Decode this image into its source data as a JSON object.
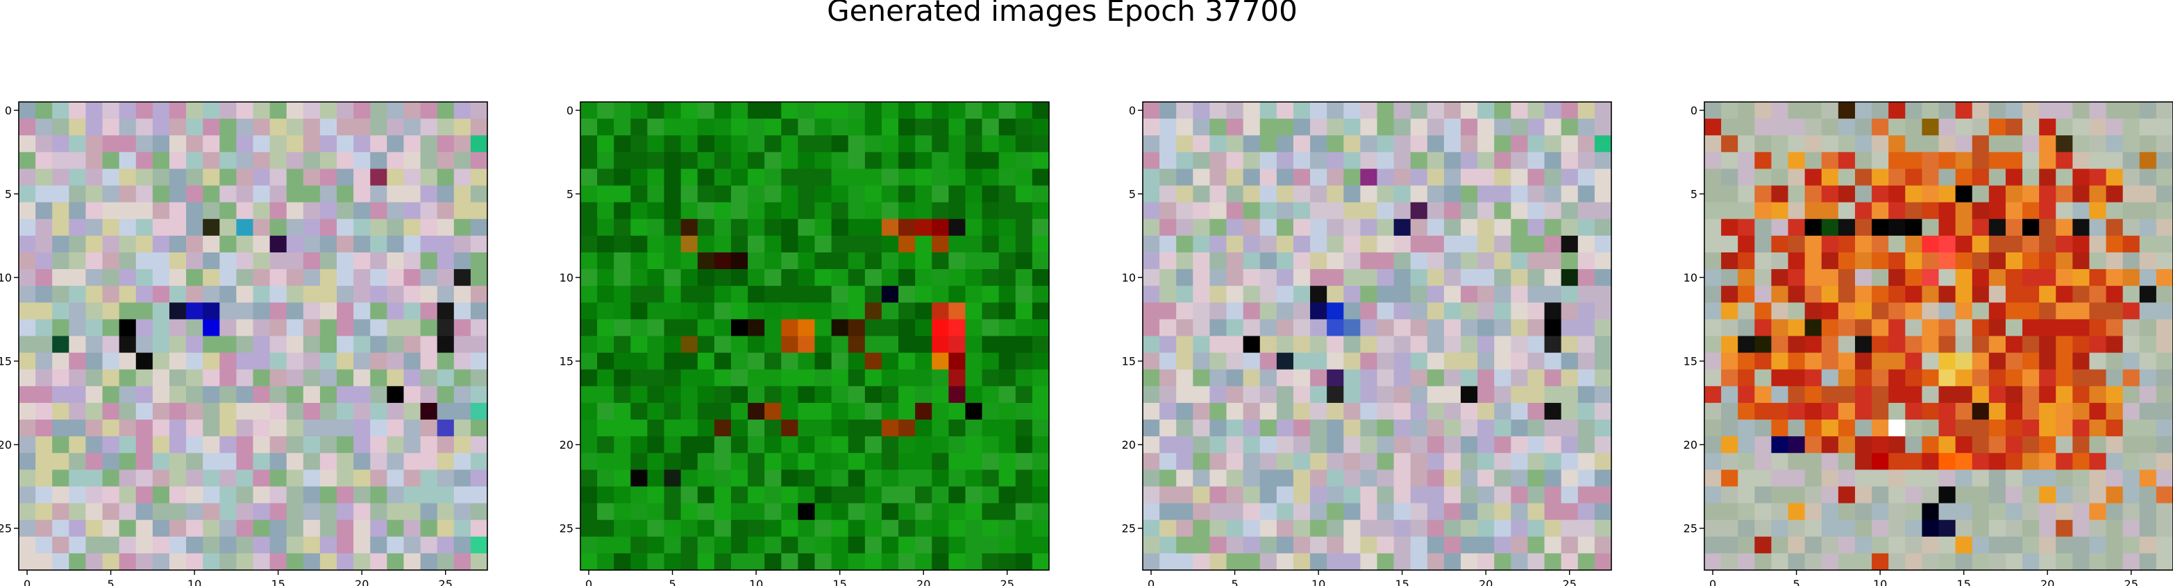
{
  "figure": {
    "title": "Generated images Epoch 37700"
  },
  "chart_data": [
    {
      "type": "heatmap",
      "name": "panel-1",
      "theme": "pastel-noise",
      "grid_size": 28,
      "xlim": [
        -0.5,
        27.5
      ],
      "ylim": [
        27.5,
        -0.5
      ],
      "xticks": [
        "0",
        "5",
        "10",
        "15",
        "20",
        "25"
      ],
      "yticks": [
        "0",
        "5",
        "10",
        "15",
        "20",
        "25"
      ],
      "palette": [
        "#c6b0c8",
        "#b8c9a9",
        "#d6c3d5",
        "#a7b5c4",
        "#c9a8b3",
        "#e1d6cf",
        "#9fb9a4",
        "#b7a9d3",
        "#d3cf9e",
        "#8fa7b7",
        "#c98fb0",
        "#a2c8c4",
        "#e4c8d6",
        "#7fb27a",
        "#c5d2e6"
      ],
      "accents": [
        [
          12,
          10,
          "#1010c0"
        ],
        [
          12,
          11,
          "#0a0a90"
        ],
        [
          13,
          11,
          "#0000e0"
        ],
        [
          12,
          9,
          "#101030"
        ],
        [
          13,
          6,
          "#000000"
        ],
        [
          14,
          6,
          "#111111"
        ],
        [
          15,
          7,
          "#0a0a0a"
        ],
        [
          12,
          25,
          "#151515"
        ],
        [
          13,
          25,
          "#202020"
        ],
        [
          14,
          25,
          "#101010"
        ],
        [
          10,
          26,
          "#1a1a1a"
        ],
        [
          17,
          22,
          "#000000"
        ],
        [
          18,
          24,
          "#300010"
        ],
        [
          14,
          2,
          "#0a4a2a"
        ],
        [
          7,
          11,
          "#2a2a10"
        ],
        [
          8,
          15,
          "#2a0a40"
        ],
        [
          4,
          21,
          "#8a2a50"
        ],
        [
          7,
          13,
          "#2aa0c0"
        ],
        [
          2,
          27,
          "#20c080"
        ],
        [
          18,
          27,
          "#40c8a0"
        ],
        [
          26,
          27,
          "#30d090"
        ],
        [
          19,
          25,
          "#4040c0"
        ]
      ]
    },
    {
      "type": "heatmap",
      "name": "panel-2",
      "theme": "green-field",
      "grid_size": 28,
      "xlim": [
        -0.5,
        27.5
      ],
      "ylim": [
        27.5,
        -0.5
      ],
      "xticks": [
        "0",
        "5",
        "10",
        "15",
        "20",
        "25"
      ],
      "yticks": [
        "0",
        "5",
        "10",
        "15",
        "20",
        "25"
      ],
      "palette": [
        "#0a8a0a",
        "#067a06",
        "#129a12",
        "#0b6e0b",
        "#1a9a1a",
        "#045c04",
        "#0e8e0e",
        "#2aa02a",
        "#086808",
        "#15a515"
      ],
      "accents": [
        [
          7,
          6,
          "#3a1a00"
        ],
        [
          8,
          6,
          "#a07010"
        ],
        [
          9,
          7,
          "#2a2000"
        ],
        [
          9,
          8,
          "#3a0800"
        ],
        [
          9,
          9,
          "#200800"
        ],
        [
          7,
          18,
          "#c06010"
        ],
        [
          7,
          19,
          "#802000"
        ],
        [
          7,
          20,
          "#a01000"
        ],
        [
          7,
          21,
          "#900000"
        ],
        [
          7,
          22,
          "#101010"
        ],
        [
          8,
          19,
          "#b05000"
        ],
        [
          8,
          21,
          "#a04000"
        ],
        [
          11,
          18,
          "#000020"
        ],
        [
          12,
          21,
          "#c03010"
        ],
        [
          12,
          22,
          "#e06020"
        ],
        [
          13,
          21,
          "#ff1010"
        ],
        [
          13,
          22,
          "#ff2020"
        ],
        [
          14,
          21,
          "#f01010"
        ],
        [
          14,
          22,
          "#e02020"
        ],
        [
          15,
          21,
          "#e08000"
        ],
        [
          15,
          22,
          "#900000"
        ],
        [
          16,
          22,
          "#a01010"
        ],
        [
          17,
          22,
          "#600020"
        ],
        [
          18,
          23,
          "#000000"
        ],
        [
          13,
          9,
          "#000000"
        ],
        [
          13,
          10,
          "#201000"
        ],
        [
          13,
          12,
          "#c05000"
        ],
        [
          13,
          13,
          "#e07000"
        ],
        [
          14,
          12,
          "#a04000"
        ],
        [
          14,
          13,
          "#d06010"
        ],
        [
          13,
          15,
          "#1a1000"
        ],
        [
          13,
          16,
          "#4a2000"
        ],
        [
          14,
          16,
          "#5a2a00"
        ],
        [
          15,
          17,
          "#7a3000"
        ],
        [
          14,
          6,
          "#6a5000"
        ],
        [
          18,
          10,
          "#301000"
        ],
        [
          18,
          11,
          "#a04000"
        ],
        [
          19,
          8,
          "#502000"
        ],
        [
          19,
          12,
          "#602000"
        ],
        [
          19,
          18,
          "#a04000"
        ],
        [
          19,
          19,
          "#803000"
        ],
        [
          18,
          20,
          "#501000"
        ],
        [
          22,
          3,
          "#050505"
        ],
        [
          22,
          5,
          "#102010"
        ],
        [
          24,
          13,
          "#000000"
        ],
        [
          12,
          17,
          "#503000"
        ]
      ]
    },
    {
      "type": "heatmap",
      "name": "panel-3",
      "theme": "pastel-noise",
      "grid_size": 28,
      "xlim": [
        -0.5,
        27.5
      ],
      "ylim": [
        27.5,
        -0.5
      ],
      "xticks": [
        "0",
        "5",
        "10",
        "15",
        "20",
        "25"
      ],
      "yticks": [
        "0",
        "5",
        "10",
        "15",
        "20",
        "25"
      ],
      "palette": [
        "#c2b4c6",
        "#b5c7ab",
        "#d4c5d3",
        "#a4b4c2",
        "#c7aab5",
        "#e0d8d1",
        "#9db8a6",
        "#b5abd1",
        "#d1cda0",
        "#8da6b5",
        "#c791ae",
        "#a0c6c2",
        "#e2cad4",
        "#84b47c",
        "#c3d0e4"
      ],
      "accents": [
        [
          12,
          11,
          "#0a2ad0"
        ],
        [
          12,
          10,
          "#0a0a60"
        ],
        [
          13,
          11,
          "#3050d0"
        ],
        [
          13,
          12,
          "#4a70c0"
        ],
        [
          11,
          10,
          "#101010"
        ],
        [
          14,
          6,
          "#000000"
        ],
        [
          15,
          8,
          "#102030"
        ],
        [
          7,
          15,
          "#101050"
        ],
        [
          6,
          16,
          "#4a1a50"
        ],
        [
          12,
          24,
          "#101010"
        ],
        [
          13,
          24,
          "#000000"
        ],
        [
          14,
          24,
          "#202020"
        ],
        [
          10,
          25,
          "#0a2a0a"
        ],
        [
          8,
          25,
          "#101010"
        ],
        [
          17,
          19,
          "#0a0a0a"
        ],
        [
          17,
          11,
          "#202020"
        ],
        [
          18,
          24,
          "#101010"
        ],
        [
          2,
          27,
          "#20c080"
        ],
        [
          4,
          13,
          "#8a2a80"
        ],
        [
          16,
          11,
          "#3a1a60"
        ]
      ]
    },
    {
      "type": "heatmap",
      "name": "panel-4",
      "theme": "warm-center",
      "grid_size": 28,
      "xlim": [
        -0.5,
        27.5
      ],
      "ylim": [
        27.5,
        -0.5
      ],
      "xticks": [
        "0",
        "5",
        "10",
        "15",
        "20",
        "25"
      ],
      "yticks": [
        "0",
        "5",
        "10",
        "15",
        "20",
        "25"
      ],
      "palette_outer": [
        "#b7c0b0",
        "#a6b8c0",
        "#c8b8c8",
        "#b0c0a8",
        "#9fb0a8",
        "#c0c8b8",
        "#d0c0b0",
        "#a8b8a0"
      ],
      "palette_warm": [
        "#e06010",
        "#d04010",
        "#c02010",
        "#e08020",
        "#f0a020",
        "#d03020",
        "#b02010",
        "#e07030",
        "#c05020",
        "#f09030"
      ],
      "accents": [
        [
          0,
          8,
          "#3a2000"
        ],
        [
          0,
          11,
          "#c02010"
        ],
        [
          1,
          13,
          "#8a6000"
        ],
        [
          2,
          21,
          "#3a2a10"
        ],
        [
          5,
          15,
          "#000000"
        ],
        [
          7,
          6,
          "#000000"
        ],
        [
          7,
          7,
          "#0a4a0a"
        ],
        [
          7,
          8,
          "#101010"
        ],
        [
          7,
          10,
          "#000000"
        ],
        [
          7,
          11,
          "#0a0a0a"
        ],
        [
          7,
          12,
          "#000000"
        ],
        [
          7,
          17,
          "#101010"
        ],
        [
          7,
          19,
          "#000000"
        ],
        [
          7,
          22,
          "#101010"
        ],
        [
          8,
          13,
          "#ff3030"
        ],
        [
          8,
          14,
          "#ff4040"
        ],
        [
          9,
          14,
          "#ff6040"
        ],
        [
          10,
          13,
          "#f04040"
        ],
        [
          14,
          2,
          "#101010"
        ],
        [
          14,
          3,
          "#202000"
        ],
        [
          14,
          9,
          "#101010"
        ],
        [
          15,
          14,
          "#f0c030"
        ],
        [
          15,
          15,
          "#e8d060"
        ],
        [
          16,
          14,
          "#f0d060"
        ],
        [
          18,
          16,
          "#301000"
        ],
        [
          19,
          11,
          "#ffffff"
        ],
        [
          20,
          4,
          "#000060"
        ],
        [
          20,
          5,
          "#200050"
        ],
        [
          21,
          14,
          "#ff6000"
        ],
        [
          21,
          15,
          "#ff7010"
        ],
        [
          21,
          10,
          "#c00000"
        ],
        [
          24,
          13,
          "#000010"
        ],
        [
          25,
          13,
          "#000030"
        ],
        [
          25,
          14,
          "#101040"
        ],
        [
          11,
          26,
          "#101010"
        ],
        [
          3,
          26,
          "#c07010"
        ],
        [
          13,
          6,
          "#202000"
        ],
        [
          23,
          14,
          "#0a0a0a"
        ]
      ]
    }
  ]
}
